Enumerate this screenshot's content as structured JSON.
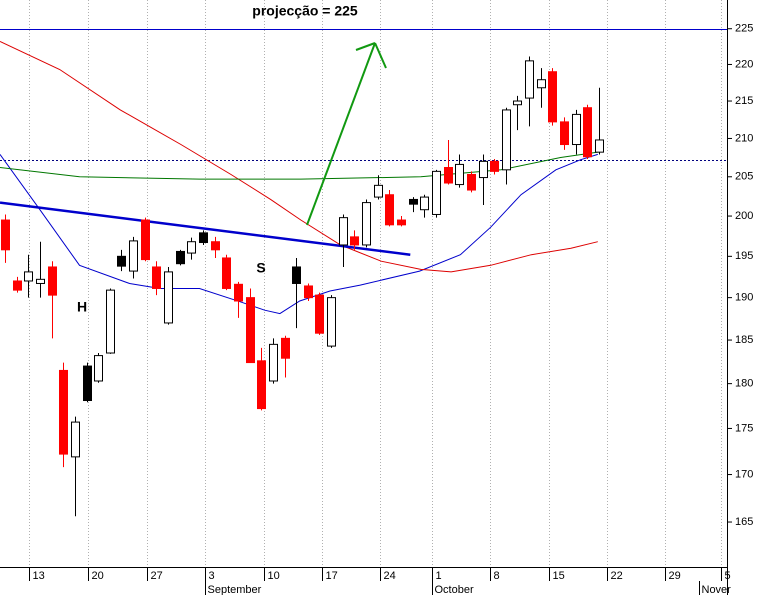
{
  "chart_data": {
    "type": "candlestick",
    "yscale": "log",
    "ylim": [
      160.4,
      229.1
    ],
    "yticks": [
      165,
      170,
      175,
      180,
      185,
      190,
      195,
      200,
      205,
      210,
      215,
      220,
      225
    ],
    "xlim": [
      -0.43,
      61.99
    ],
    "xticks": [
      {
        "value": 2.06,
        "label": "13"
      },
      {
        "value": 7.13,
        "label": "20"
      },
      {
        "value": 12.2,
        "label": "27"
      },
      {
        "value": 17.2,
        "label": "3"
      },
      {
        "value": 22.2,
        "label": "10"
      },
      {
        "value": 27.2,
        "label": "17"
      },
      {
        "value": 32.2,
        "label": "24"
      },
      {
        "value": 36.7,
        "label": "1"
      },
      {
        "value": 41.6,
        "label": "8"
      },
      {
        "value": 46.7,
        "label": "15"
      },
      {
        "value": 51.7,
        "label": "22"
      },
      {
        "value": 56.7,
        "label": "29"
      },
      {
        "value": 61.5,
        "label": "5"
      }
    ],
    "month_labels": [
      {
        "value": 17.2,
        "label": "September"
      },
      {
        "value": 36.7,
        "label": "October"
      },
      {
        "value": 59.6,
        "label": "Nover"
      }
    ],
    "grid": true,
    "open": [
      199.5,
      192.0,
      192.0,
      191.7,
      193.7,
      181.5,
      171.9,
      182.0,
      180.3,
      183.5,
      195.0,
      193.2,
      199.5,
      193.7,
      187.0,
      195.6,
      195.4,
      197.9,
      196.8,
      194.8,
      191.6,
      190.0,
      182.6,
      180.3,
      185.2,
      193.7,
      191.4,
      190.3,
      184.3,
      196.4,
      197.4,
      196.4,
      202.4,
      202.7,
      199.5,
      202.1,
      200.8,
      200.2,
      206.2,
      204.0,
      205.3,
      204.9,
      207.0,
      205.9,
      214.5,
      215.4,
      216.8,
      219.0,
      212.2,
      209.2,
      214.1,
      208.2
    ],
    "high": [
      200.2,
      192.5,
      195.2,
      196.8,
      194.4,
      182.4,
      176.3,
      182.4,
      183.5,
      191.1,
      195.8,
      197.4,
      199.8,
      194.4,
      193.7,
      195.8,
      197.3,
      198.2,
      197.4,
      195.2,
      191.9,
      191.1,
      184.1,
      185.2,
      185.5,
      194.8,
      191.7,
      190.6,
      190.3,
      200.2,
      198.2,
      202.1,
      205.2,
      203.3,
      200.0,
      202.4,
      202.7,
      205.9,
      209.8,
      207.9,
      205.7,
      207.9,
      207.3,
      214.1,
      215.7,
      221.1,
      219.5,
      219.5,
      212.8,
      213.8,
      214.5,
      216.8
    ],
    "low": [
      194.2,
      190.6,
      190.0,
      190.0,
      185.2,
      170.8,
      165.6,
      177.9,
      180.1,
      183.4,
      193.2,
      192.3,
      194.4,
      190.3,
      186.8,
      193.9,
      194.6,
      196.4,
      194.8,
      190.9,
      187.6,
      182.4,
      177.0,
      180.0,
      180.7,
      186.4,
      189.6,
      185.6,
      184.1,
      193.7,
      195.8,
      196.1,
      202.1,
      198.7,
      198.7,
      200.5,
      199.8,
      199.8,
      204.0,
      203.6,
      203.0,
      201.4,
      205.3,
      204.0,
      211.1,
      211.6,
      214.1,
      211.7,
      208.5,
      207.9,
      207.3,
      207.9
    ],
    "close": [
      195.8,
      190.9,
      193.1,
      192.2,
      190.3,
      172.2,
      175.7,
      178.1,
      183.2,
      190.9,
      193.8,
      196.9,
      194.6,
      191.1,
      193.1,
      194.1,
      196.8,
      196.7,
      195.8,
      191.1,
      189.6,
      182.4,
      177.2,
      184.5,
      182.9,
      191.7,
      190.0,
      185.8,
      190.0,
      199.8,
      196.4,
      201.7,
      203.9,
      198.9,
      198.9,
      201.5,
      202.4,
      205.7,
      204.2,
      206.6,
      203.3,
      207.0,
      205.7,
      213.8,
      215.0,
      220.5,
      217.9,
      212.2,
      209.2,
      213.2,
      207.6,
      209.8
    ],
    "colors": [
      "#ff0000",
      "#ff0000",
      "#ffffff",
      "#ffffff",
      "#ff0000",
      "#ff0000",
      "#ffffff",
      "#000000",
      "#ffffff",
      "#ffffff",
      "#000000",
      "#ffffff",
      "#ff0000",
      "#ff0000",
      "#ffffff",
      "#000000",
      "#ffffff",
      "#000000",
      "#ff0000",
      "#ff0000",
      "#ff0000",
      "#ff0000",
      "#ff0000",
      "#ffffff",
      "#ff0000",
      "#000000",
      "#ff0000",
      "#ff0000",
      "#ffffff",
      "#ffffff",
      "#ff0000",
      "#ffffff",
      "#ffffff",
      "#ff0000",
      "#ff0000",
      "#000000",
      "#ffffff",
      "#ffffff",
      "#ff0000",
      "#ffffff",
      "#ff0000",
      "#ffffff",
      "#ff0000",
      "#ffffff",
      "#ffffff",
      "#ffffff",
      "#ffffff",
      "#ff0000",
      "#ff0000",
      "#ffffff",
      "#ff0000",
      "#ffffff"
    ],
    "lines": [
      {
        "color": "#0000cc",
        "x": [
          -0.43,
          3.0,
          6.4,
          10.7,
          13.3,
          16.7,
          20.2,
          22.3,
          23.6,
          25.3,
          27.9,
          30.5,
          35.6,
          39.1,
          41.7,
          44.3,
          47.3,
          49.4,
          50.9
        ],
        "values": [
          207.9,
          200.8,
          193.9,
          191.7,
          191.1,
          191.1,
          189.5,
          188.5,
          188.1,
          189.6,
          190.8,
          191.5,
          193.2,
          195.2,
          198.6,
          202.7,
          205.9,
          207.2,
          207.9
        ]
      },
      {
        "color": "#dd0000",
        "x": [
          -0.43,
          4.7,
          9.9,
          15.1,
          19.4,
          22.8,
          25.4,
          28.8,
          32.3,
          35.7,
          38.3,
          41.7,
          45.2,
          48.6,
          50.9
        ],
        "values": [
          223.2,
          219.3,
          213.8,
          209.2,
          205.3,
          202.1,
          199.5,
          196.4,
          194.4,
          193.4,
          193.1,
          193.9,
          195.2,
          196.0,
          196.8
        ]
      },
      {
        "color": "#007700",
        "x": [
          -0.43,
          6.4,
          16.7,
          25.4,
          35.7,
          42.6,
          47.7,
          50.9
        ],
        "values": [
          206.2,
          205.0,
          204.7,
          204.7,
          205.0,
          205.9,
          207.5,
          208.2
        ]
      }
    ],
    "trendline": {
      "color": "#0000cc",
      "x": [
        -0.43,
        34.8
      ],
      "values": [
        201.7,
        195.2
      ]
    },
    "hlines": [
      {
        "value": 225,
        "color": "#0000cc",
        "style": "solid"
      },
      {
        "value": 207.2,
        "color": "#000080",
        "style": "dotted"
      }
    ],
    "annotations": [
      "projecção = 225",
      "H",
      "S"
    ]
  }
}
